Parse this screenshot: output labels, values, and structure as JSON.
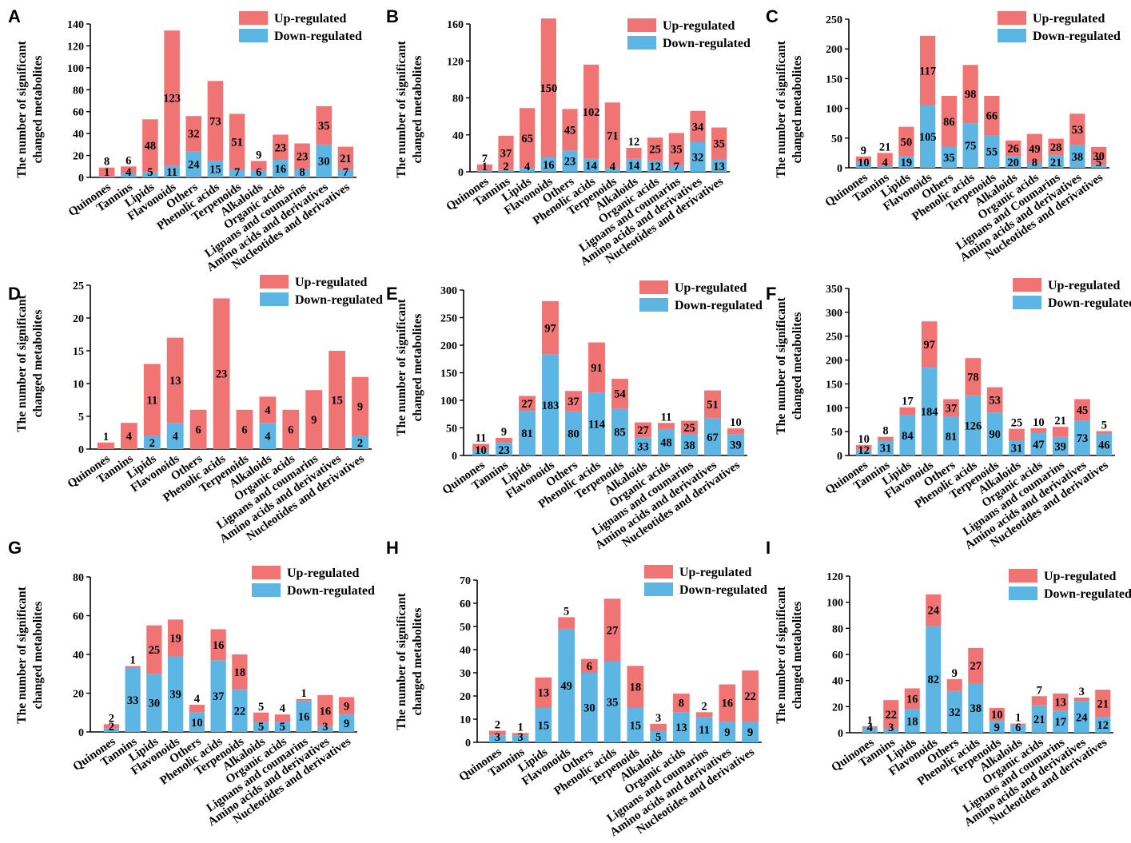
{
  "legend": {
    "up": "Up-regulated",
    "down": "Down-regulated"
  },
  "ylabel_lines": [
    "The number of significant",
    "changed metabolites"
  ],
  "colors": {
    "up": "#F07474",
    "down": "#5DB5E3",
    "axis": "#000000"
  },
  "categories": [
    "Quinones",
    "Tannins",
    "Lipids",
    "Flavonoids",
    "Others",
    "Phenolic acids",
    "Terpenoids",
    "Alkaloids",
    "Organic acids",
    "Lignans and coumarins",
    "Amino acids and derivatives",
    "Nucleotides and derivatives"
  ],
  "chart_data": [
    {
      "type": "bar",
      "panel": "A",
      "categories": [
        "Quinones",
        "Tannins",
        "Lipids",
        "Flavonoids",
        "Others",
        "Phenolic acids",
        "Terpenoids",
        "Alkaloids",
        "Organic acids",
        "Lignans and coumarins",
        "Amino acids and derivatives",
        "Nucleotides and derivatives"
      ],
      "series": [
        {
          "name": "Down-regulated",
          "values": [
            1,
            4,
            5,
            11,
            24,
            15,
            7,
            6,
            16,
            8,
            30,
            7
          ]
        },
        {
          "name": "Up-regulated",
          "values": [
            8,
            6,
            48,
            123,
            32,
            73,
            51,
            9,
            23,
            23,
            35,
            21
          ]
        }
      ],
      "ylabel": "The number of significant changed metabolites",
      "ylim": [
        0,
        140
      ],
      "yticks": [
        0,
        20,
        40,
        60,
        80,
        100,
        120,
        140
      ],
      "legend": "top-right"
    },
    {
      "type": "bar",
      "panel": "B",
      "categories": [
        "Quinones",
        "Tannins",
        "Lipids",
        "Flavonoids",
        "Others",
        "Phenolic acids",
        "Terpenoids",
        "Alkaloids",
        "Organic acids",
        "Lignans and coumarins",
        "Amino acids and derivatives",
        "Nucleotides and derivatives"
      ],
      "series": [
        {
          "name": "Down-regulated",
          "values": [
            1,
            2,
            4,
            16,
            23,
            14,
            4,
            14,
            12,
            7,
            32,
            13
          ]
        },
        {
          "name": "Up-regulated",
          "values": [
            7,
            37,
            65,
            150,
            45,
            102,
            71,
            12,
            25,
            35,
            34,
            35
          ]
        }
      ],
      "ylabel": "The number of significant changed metabolites",
      "ylim": [
        0,
        160
      ],
      "yticks": [
        0,
        40,
        80,
        120,
        160
      ],
      "legend": "top-right"
    },
    {
      "type": "bar",
      "panel": "C",
      "categories": [
        "Quinones",
        "Tannins",
        "Lipids",
        "Flavonoids",
        "Others",
        "Phenolic acids",
        "Terpenoids",
        "Alkaloids",
        "Organic acids",
        "Lignans and Coumarins",
        "Amino acids and derivatives",
        "Nucleotides and derivatives"
      ],
      "series": [
        {
          "name": "Down-regulated",
          "values": [
            10,
            4,
            19,
            105,
            35,
            75,
            55,
            20,
            8,
            21,
            38,
            5
          ]
        },
        {
          "name": "Up-regulated",
          "values": [
            9,
            21,
            50,
            117,
            86,
            98,
            66,
            26,
            49,
            28,
            53,
            30
          ]
        }
      ],
      "ylabel": "The number of significant changed metabolites",
      "ylim": [
        0,
        250
      ],
      "yticks": [
        0,
        50,
        100,
        150,
        200,
        250
      ],
      "legend": "top-right"
    },
    {
      "type": "bar",
      "panel": "D",
      "categories": [
        "Quinones",
        "Tannins",
        "Lipids",
        "Flavonoids",
        "Others",
        "Phenolic acids",
        "Terpenoids",
        "Alkaloids",
        "Organic acids",
        "Lignans and coumarins",
        "Amino acids and derivatives",
        "Nucleotides and derivatives"
      ],
      "series": [
        {
          "name": "Down-regulated",
          "values": [
            0,
            0,
            2,
            4,
            0,
            0,
            0,
            4,
            0,
            0,
            0,
            2
          ]
        },
        {
          "name": "Up-regulated",
          "values": [
            1,
            4,
            11,
            13,
            6,
            23,
            6,
            4,
            6,
            9,
            15,
            9
          ]
        }
      ],
      "ylabel": "The number of significant changed metabolites",
      "ylim": [
        0,
        25
      ],
      "yticks": [
        0,
        5,
        10,
        15,
        20,
        25
      ],
      "legend": "top-right"
    },
    {
      "type": "bar",
      "panel": "E",
      "categories": [
        "Quinones",
        "Tannins",
        "Lipids",
        "Flavonoids",
        "Others",
        "Phenolic acids",
        "Terpenoids",
        "Alkaloids",
        "Organic acids",
        "Lignans and coumarins",
        "Amino acids and derivatives",
        "Nucleotides and derivatives"
      ],
      "series": [
        {
          "name": "Down-regulated",
          "values": [
            10,
            23,
            81,
            183,
            80,
            114,
            85,
            33,
            48,
            38,
            67,
            39
          ]
        },
        {
          "name": "Up-regulated",
          "values": [
            11,
            9,
            27,
            97,
            37,
            91,
            54,
            27,
            11,
            25,
            51,
            10
          ]
        }
      ],
      "ylabel": "The number of significant changed metabolites",
      "ylim": [
        0,
        300
      ],
      "yticks": [
        0,
        50,
        100,
        150,
        200,
        250,
        300
      ],
      "legend": "top-right"
    },
    {
      "type": "bar",
      "panel": "F",
      "categories": [
        "Quinones",
        "Tannins",
        "Lipids",
        "Flavonoids",
        "Others",
        "Phenolic acids",
        "Terpenoids",
        "Alkaloids",
        "Organic acids",
        "Lignans and coumarins",
        "Amino acids and derivatives",
        "Nucleotides and derivatives"
      ],
      "series": [
        {
          "name": "Down-regulated",
          "values": [
            12,
            31,
            84,
            184,
            81,
            126,
            90,
            31,
            47,
            39,
            73,
            46
          ]
        },
        {
          "name": "Up-regulated",
          "values": [
            10,
            8,
            17,
            97,
            37,
            78,
            53,
            25,
            10,
            21,
            45,
            5
          ]
        }
      ],
      "ylabel": "The number of significant changed metabolites",
      "ylim": [
        0,
        350
      ],
      "yticks": [
        0,
        50,
        100,
        150,
        200,
        250,
        300,
        350
      ],
      "legend": "top-right"
    },
    {
      "type": "bar",
      "panel": "G",
      "categories": [
        "Quinones",
        "Tannins",
        "Lipids",
        "Flavonoids",
        "Others",
        "Phenolic acids",
        "Terpenoids",
        "Alkaloids",
        "Organic acids",
        "Lignans and coumarins",
        "Amino acids and derivatives",
        "Nucleotides and derivatives"
      ],
      "series": [
        {
          "name": "Down-regulated",
          "values": [
            2,
            33,
            30,
            39,
            10,
            37,
            22,
            5,
            5,
            16,
            3,
            9
          ]
        },
        {
          "name": "Up-regulated",
          "values": [
            2,
            1,
            25,
            19,
            4,
            16,
            18,
            5,
            4,
            1,
            16,
            9
          ]
        }
      ],
      "ylabel": "The number of significant changed metabolites",
      "ylim": [
        0,
        80
      ],
      "yticks": [
        0,
        20,
        40,
        60,
        80
      ],
      "legend": "top-right"
    },
    {
      "type": "bar",
      "panel": "H",
      "categories": [
        "Quinones",
        "Tannins",
        "Lipids",
        "Flavonoids",
        "Others",
        "Phenolic acids",
        "Terpenoids",
        "Alkaloids",
        "Organic acids",
        "Lignans and coumarins",
        "Amino acids and derivatives",
        "Nucleotides and derivatives"
      ],
      "series": [
        {
          "name": "Down-regulated",
          "values": [
            3,
            3,
            15,
            49,
            30,
            35,
            15,
            5,
            13,
            11,
            9,
            9
          ]
        },
        {
          "name": "Up-regulated",
          "values": [
            2,
            1,
            13,
            5,
            6,
            27,
            18,
            3,
            8,
            2,
            16,
            22
          ]
        }
      ],
      "ylabel": "The number of significant changed metabolites",
      "ylim": [
        0,
        70
      ],
      "yticks": [
        0,
        10,
        20,
        30,
        40,
        50,
        60,
        70
      ],
      "legend": "top-right"
    },
    {
      "type": "bar",
      "panel": "I",
      "categories": [
        "Quinones",
        "Tannins",
        "Lipids",
        "Flavonoids",
        "Others",
        "Phenolic acids",
        "Terpenoids",
        "Alkaloids",
        "Organic acids",
        "Lignans and coumarins",
        "Amino acids and derivatives",
        "Nucleotides and derivatives"
      ],
      "series": [
        {
          "name": "Down-regulated",
          "values": [
            4,
            3,
            18,
            82,
            32,
            38,
            9,
            6,
            21,
            17,
            24,
            12
          ]
        },
        {
          "name": "Up-regulated",
          "values": [
            1,
            22,
            16,
            24,
            9,
            27,
            10,
            1,
            7,
            13,
            3,
            21
          ]
        }
      ],
      "ylabel": "The number of significant changed metabolites",
      "ylim": [
        0,
        120
      ],
      "yticks": [
        0,
        20,
        40,
        60,
        80,
        100,
        120
      ],
      "legend": "top-right"
    }
  ]
}
